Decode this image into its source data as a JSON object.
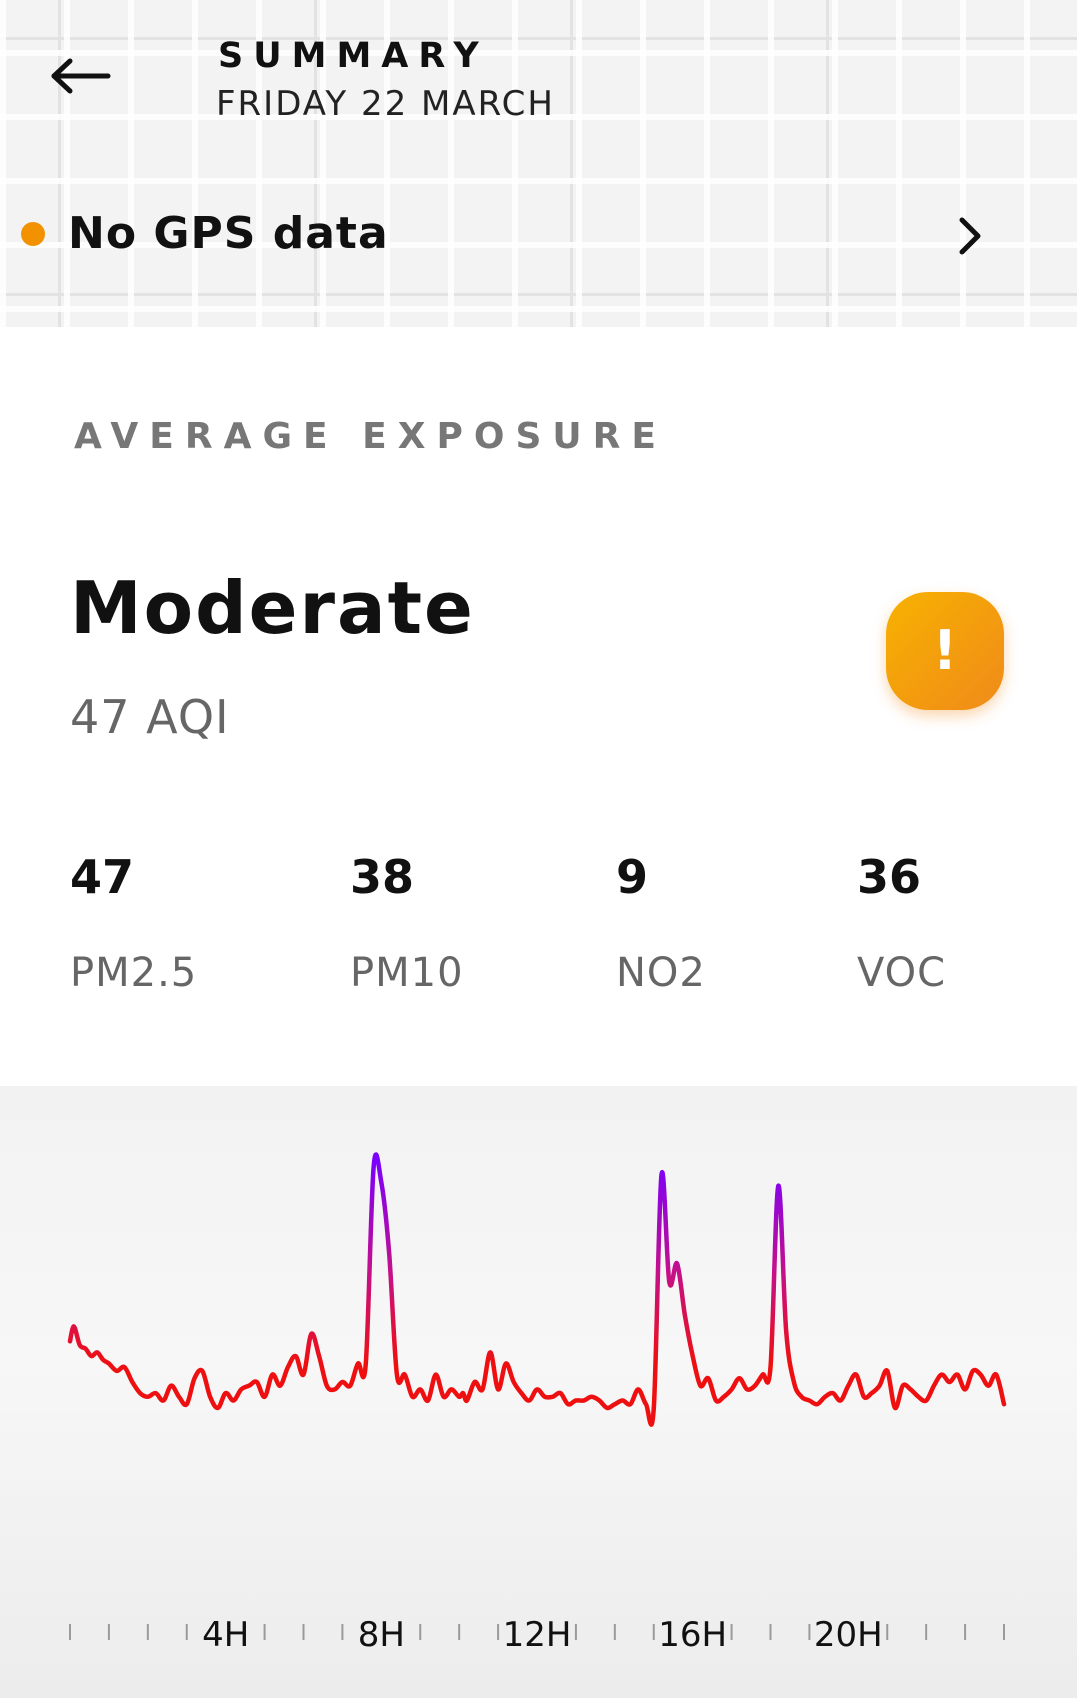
{
  "header": {
    "title": "SUMMARY",
    "date": "FRIDAY 22 MARCH",
    "back_icon": "arrow-left-icon"
  },
  "gps": {
    "status": "No GPS data",
    "dot_color": "#f39200",
    "chevron_icon": "chevron-right-icon"
  },
  "exposure": {
    "section_label": "AVERAGE EXPOSURE",
    "level": "Moderate",
    "aqi": "47 AQI",
    "badge_symbol": "!",
    "badge_icon": "alert-icon",
    "badge_color": "#f5a20c"
  },
  "metrics": [
    {
      "value": "47",
      "label": "PM2.5"
    },
    {
      "value": "38",
      "label": "PM10"
    },
    {
      "value": "9",
      "label": "NO2"
    },
    {
      "value": "36",
      "label": "VOC"
    }
  ],
  "chart_data": {
    "type": "line",
    "title": "",
    "xlabel": "",
    "ylabel": "",
    "x_tick_labels": [
      "4H",
      "8H",
      "12H",
      "16H",
      "20H"
    ],
    "x_tick_hours": [
      4,
      8,
      12,
      16,
      20
    ],
    "xlim": [
      0,
      24
    ],
    "ylim": [
      0,
      100
    ],
    "grid": false,
    "colors": {
      "low": "#ee1010",
      "high": "#7a00ff"
    },
    "series": [
      {
        "x": [
          0,
          0.1,
          0.25,
          0.4,
          0.55,
          0.7,
          0.85,
          1.0,
          1.2,
          1.4,
          1.6,
          1.8,
          2.0,
          2.2,
          2.4,
          2.6,
          2.8,
          3.0,
          3.2,
          3.4,
          3.6,
          3.8,
          4.0,
          4.2,
          4.4,
          4.6,
          4.8,
          5.0,
          5.2,
          5.4,
          5.6,
          5.8,
          6.0,
          6.2,
          6.4,
          6.6,
          6.8,
          7.0,
          7.2,
          7.4,
          7.6,
          7.8,
          8.0,
          8.2,
          8.4,
          8.6,
          8.8,
          9.0,
          9.2,
          9.4,
          9.6,
          9.8,
          10.0,
          10.1,
          10.2,
          10.4,
          10.6,
          10.8,
          11.0,
          11.2,
          11.4,
          11.6,
          11.8,
          12.0,
          12.2,
          12.4,
          12.6,
          12.8,
          13.0,
          13.2,
          13.4,
          13.6,
          13.8,
          14.0,
          14.2,
          14.4,
          14.6,
          14.8,
          15.0,
          15.2,
          15.4,
          15.6,
          15.8,
          16.0,
          16.2,
          16.4,
          16.6,
          16.8,
          17.0,
          17.2,
          17.4,
          17.6,
          17.8,
          18.0,
          18.2,
          18.4,
          18.6,
          18.8,
          19.0,
          19.2,
          19.4,
          19.6,
          19.8,
          20.0,
          20.2,
          20.4,
          20.6,
          20.8,
          21.0,
          21.2,
          21.4,
          21.6,
          21.8,
          22.0,
          22.2,
          22.4,
          22.6,
          22.8,
          23.0,
          23.2,
          23.4,
          23.6,
          23.8,
          24.0
        ],
        "values": [
          31,
          35,
          30,
          29,
          27,
          28,
          26,
          25,
          23,
          24,
          20,
          17,
          16,
          17,
          15,
          19,
          16,
          14,
          21,
          23,
          16,
          13,
          17,
          15,
          18,
          19,
          20,
          16,
          22,
          19,
          24,
          27,
          22,
          33,
          27,
          19,
          18,
          20,
          19,
          25,
          25,
          78,
          74,
          55,
          22,
          22,
          16,
          18,
          15,
          22,
          16,
          18,
          16,
          17,
          15,
          20,
          18,
          28,
          18,
          25,
          20,
          17,
          15,
          18,
          16,
          16,
          17,
          14,
          15,
          15,
          16,
          15,
          13,
          14,
          15,
          14,
          18,
          14,
          13,
          76,
          47,
          52,
          38,
          27,
          19,
          21,
          15,
          16,
          18,
          21,
          18,
          19,
          22,
          24,
          73,
          34,
          20,
          16,
          15,
          14,
          16,
          17,
          15,
          19,
          22,
          16,
          17,
          19,
          23,
          13,
          19,
          18,
          16,
          15,
          19,
          22,
          20,
          22,
          18,
          23,
          22,
          19,
          22,
          14
        ]
      }
    ]
  }
}
